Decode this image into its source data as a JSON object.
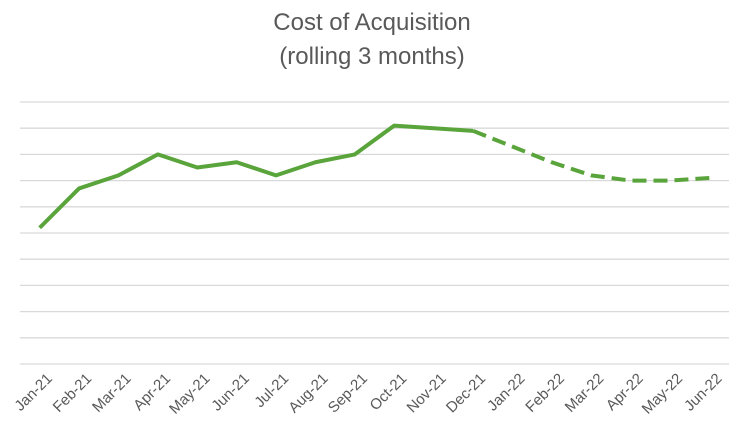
{
  "chart_data": {
    "type": "line",
    "title": "Cost of Acquisition",
    "subtitle": "(rolling 3 months)",
    "categories": [
      "Jan-21",
      "Feb-21",
      "Mar-21",
      "Apr-21",
      "May-21",
      "Jun-21",
      "Jul-21",
      "Aug-21",
      "Sep-21",
      "Oct-21",
      "Nov-21",
      "Dec-21",
      "Jan-22",
      "Feb-22",
      "Mar-22",
      "Apr-22",
      "May-22",
      "Jun-22"
    ],
    "series": [
      {
        "values": [
          5.2,
          6.7,
          7.2,
          8.0,
          7.5,
          7.7,
          7.2,
          7.7,
          8.0,
          9.1,
          9.0,
          8.9,
          null,
          null,
          null,
          null,
          null,
          null
        ],
        "style": "solid",
        "color": "#5aa43c"
      },
      {
        "values": [
          null,
          null,
          null,
          null,
          null,
          null,
          null,
          null,
          null,
          null,
          null,
          8.9,
          8.3,
          7.7,
          7.2,
          7.0,
          7.0,
          7.1
        ],
        "style": "dashed",
        "color": "#5aa43c"
      }
    ],
    "ylim": [
      0,
      10
    ],
    "grid": true,
    "legend": "none"
  }
}
